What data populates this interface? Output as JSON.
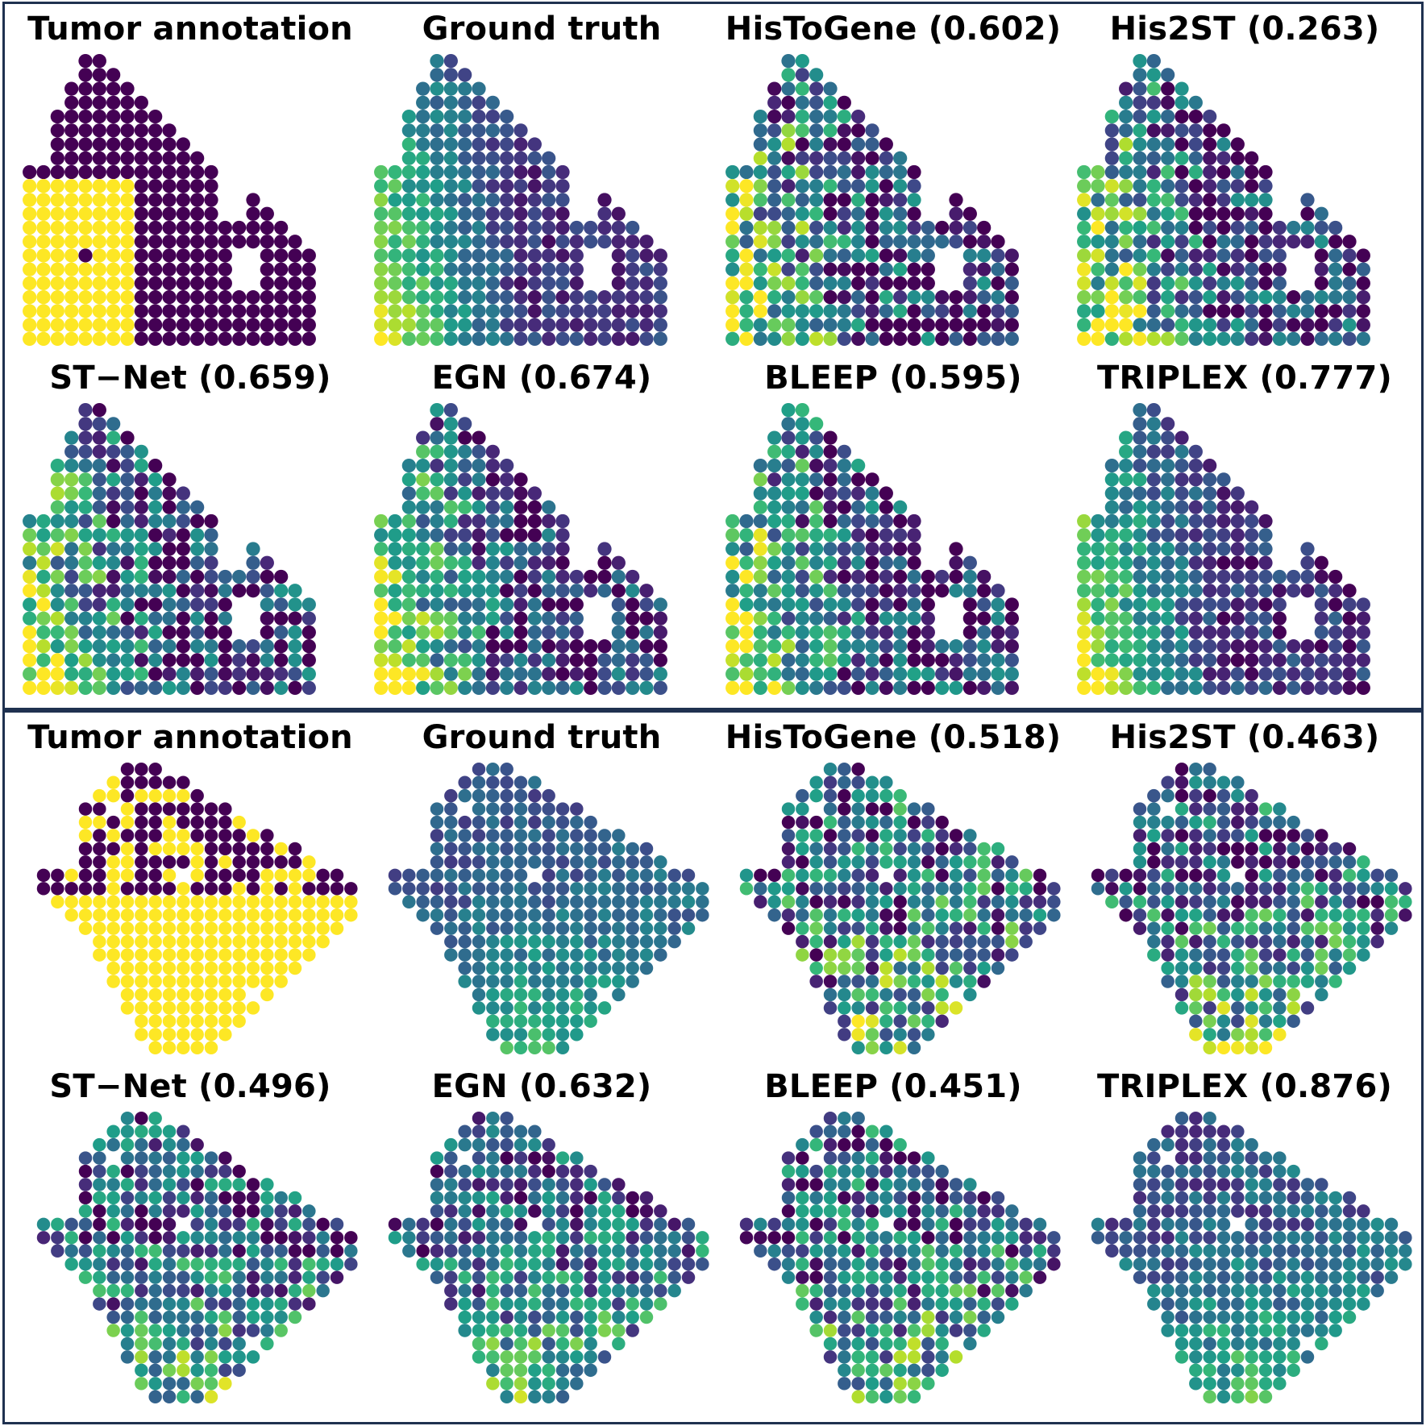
{
  "colors": {
    "frame_border": "#1f3150",
    "colormap": "viridis",
    "annotation_tumor": "#440154",
    "annotation_non_tumor": "#fde725"
  },
  "samples": [
    {
      "panels": [
        {
          "title": "Tumor annotation",
          "kind": "annotation"
        },
        {
          "title": "Ground truth",
          "kind": "expression"
        },
        {
          "title": "HisToGene (0.602)",
          "method": "HisToGene",
          "score": 0.602,
          "kind": "expression"
        },
        {
          "title": "His2ST (0.263)",
          "method": "His2ST",
          "score": 0.263,
          "kind": "expression"
        },
        {
          "title": "ST−Net (0.659)",
          "method": "ST-Net",
          "score": 0.659,
          "kind": "expression"
        },
        {
          "title": "EGN (0.674)",
          "method": "EGN",
          "score": 0.674,
          "kind": "expression"
        },
        {
          "title": "BLEEP (0.595)",
          "method": "BLEEP",
          "score": 0.595,
          "kind": "expression"
        },
        {
          "title": "TRIPLEX (0.777)",
          "method": "TRIPLEX",
          "score": 0.777,
          "kind": "expression"
        }
      ]
    },
    {
      "panels": [
        {
          "title": "Tumor annotation",
          "kind": "annotation"
        },
        {
          "title": "Ground truth",
          "kind": "expression"
        },
        {
          "title": "HisToGene (0.518)",
          "method": "HisToGene",
          "score": 0.518,
          "kind": "expression"
        },
        {
          "title": "His2ST (0.463)",
          "method": "His2ST",
          "score": 0.463,
          "kind": "expression"
        },
        {
          "title": "ST−Net (0.496)",
          "method": "ST-Net",
          "score": 0.496,
          "kind": "expression"
        },
        {
          "title": "EGN (0.632)",
          "method": "EGN",
          "score": 0.632,
          "kind": "expression"
        },
        {
          "title": "BLEEP (0.451)",
          "method": "BLEEP",
          "score": 0.451,
          "kind": "expression"
        },
        {
          "title": "TRIPLEX (0.876)",
          "method": "TRIPLEX",
          "score": 0.876,
          "kind": "expression"
        }
      ]
    }
  ]
}
